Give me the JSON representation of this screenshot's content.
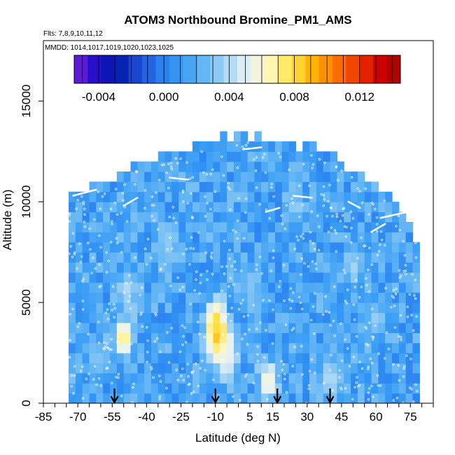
{
  "chart_data": {
    "type": "heatmap",
    "title": "ATOM3 Northbound Bromine_PM1_AMS",
    "flights_note": "Flts: 7,8,9,10,11,12",
    "dates_note": "MMDD: 1014,1017,1019,1020,1023,1025",
    "xlabel": "Latitude (deg N)",
    "ylabel": "Altitude (m)",
    "xlim": [
      -85,
      85
    ],
    "ylim": [
      0,
      18000
    ],
    "x_ticks": [
      -85,
      -70,
      -55,
      -40,
      -25,
      -10,
      5,
      15,
      30,
      45,
      60,
      75
    ],
    "y_ticks": [
      0,
      5000,
      10000,
      15000
    ],
    "colorbar": {
      "range": [
        -0.0055,
        0.0145
      ],
      "ticks": [
        -0.004,
        0.0,
        0.004,
        0.008,
        0.012
      ],
      "tick_labels": [
        "-0.004",
        "0.000",
        "0.004",
        "0.008",
        "0.012"
      ],
      "colors": [
        "#7a1fe0",
        "#1f10c8",
        "#0018a8",
        "#1f4fd8",
        "#2a7ff0",
        "#3a9df5",
        "#68b8f5",
        "#a8d6f5",
        "#e8f2f5",
        "#fff8b8",
        "#ffe24a",
        "#ffb000",
        "#ff7800",
        "#ee3a00",
        "#d00000",
        "#a60000"
      ]
    },
    "arrows_lat": [
      -54,
      -10,
      17,
      40
    ],
    "background_value": 0.0015,
    "envelope": [
      [
        -74,
        10200
      ],
      [
        -65,
        10500
      ],
      [
        -55,
        10900
      ],
      [
        -45,
        11500
      ],
      [
        -35,
        12000
      ],
      [
        -25,
        12500
      ],
      [
        -15,
        12700
      ],
      [
        -5,
        12900
      ],
      [
        5,
        13000
      ],
      [
        15,
        12900
      ],
      [
        25,
        12700
      ],
      [
        35,
        12400
      ],
      [
        45,
        11800
      ],
      [
        55,
        10800
      ],
      [
        65,
        10000
      ],
      [
        75,
        9000
      ],
      [
        78,
        8000
      ]
    ],
    "hotspots": [
      {
        "lat": -9,
        "alt": 3300,
        "value": 0.012
      },
      {
        "lat": -10,
        "alt": 4200,
        "value": 0.008
      },
      {
        "lat": -7,
        "alt": 2800,
        "value": 0.007
      },
      {
        "lat": -5,
        "alt": 2100,
        "value": 0.0055
      },
      {
        "lat": -50,
        "alt": 3300,
        "value": 0.0075
      },
      {
        "lat": 13,
        "alt": 1100,
        "value": 0.0065
      },
      {
        "lat": -48,
        "alt": 5600,
        "value": 0.0042
      },
      {
        "lat": 50,
        "alt": 6800,
        "value": 0.0038
      },
      {
        "lat": 40,
        "alt": 1300,
        "value": 0.0042
      },
      {
        "lat": -30,
        "alt": 8000,
        "value": 0.0035
      },
      {
        "lat": 25,
        "alt": 9800,
        "value": 0.0035
      },
      {
        "lat": 60,
        "alt": 4200,
        "value": 0.0035
      },
      {
        "lat": -62,
        "alt": 2300,
        "value": 0.003
      },
      {
        "lat": 5,
        "alt": 6000,
        "value": 0.0032
      }
    ]
  }
}
